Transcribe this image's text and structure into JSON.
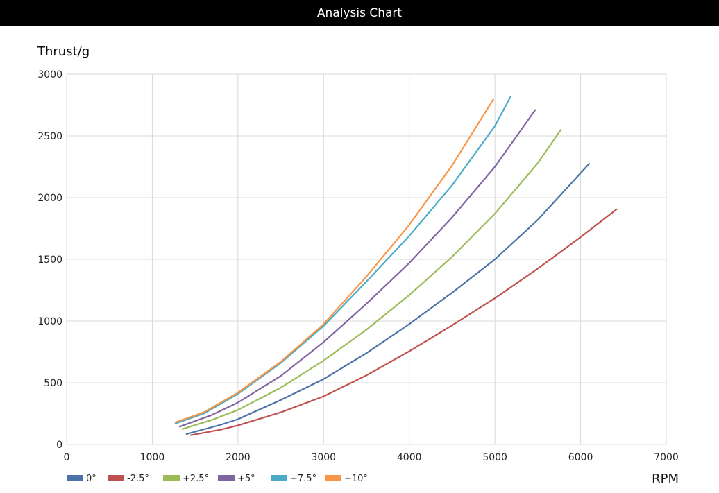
{
  "window": {
    "title": "Analysis Chart"
  },
  "chart_data": {
    "type": "line",
    "xlabel": "RPM",
    "ylabel": "Thrust/g",
    "xlim": [
      0,
      7000
    ],
    "ylim": [
      0,
      3000
    ],
    "xticks": [
      0,
      1000,
      2000,
      3000,
      4000,
      5000,
      6000,
      7000
    ],
    "yticks": [
      0,
      500,
      1000,
      1500,
      2000,
      2500,
      3000
    ],
    "grid": true,
    "legend_position": "bottom-left",
    "series": [
      {
        "name": "0°",
        "color": "#4a74a8",
        "x": [
          1400,
          1800,
          2000,
          2500,
          3000,
          3500,
          4000,
          4500,
          5000,
          5500,
          6100
        ],
        "y": [
          85,
          160,
          205,
          360,
          530,
          740,
          975,
          1230,
          1500,
          1820,
          2275
        ]
      },
      {
        "name": "-2.5°",
        "color": "#c0504d",
        "x": [
          1450,
          1800,
          2000,
          2500,
          3000,
          3500,
          4000,
          4500,
          5000,
          5500,
          6000,
          6420
        ],
        "y": [
          75,
          120,
          155,
          260,
          390,
          560,
          755,
          965,
          1185,
          1425,
          1680,
          1905
        ]
      },
      {
        "name": "+2.5°",
        "color": "#9bbb59",
        "x": [
          1350,
          1700,
          2000,
          2500,
          3000,
          3500,
          4000,
          4500,
          5000,
          5500,
          5770
        ],
        "y": [
          125,
          200,
          280,
          460,
          680,
          930,
          1210,
          1520,
          1870,
          2280,
          2550
        ]
      },
      {
        "name": "+5°",
        "color": "#8064a2",
        "x": [
          1320,
          1700,
          2000,
          2500,
          3000,
          3500,
          4000,
          4500,
          5000,
          5470
        ],
        "y": [
          145,
          240,
          340,
          555,
          830,
          1140,
          1470,
          1840,
          2250,
          2710
        ]
      },
      {
        "name": "+7.5°",
        "color": "#4bacc6",
        "x": [
          1270,
          1600,
          2000,
          2500,
          3000,
          3500,
          4000,
          4500,
          5000,
          5180
        ],
        "y": [
          170,
          250,
          410,
          660,
          960,
          1320,
          1690,
          2100,
          2580,
          2815
        ]
      },
      {
        "name": "+10°",
        "color": "#f79646",
        "x": [
          1270,
          1600,
          2000,
          2500,
          3000,
          3500,
          4000,
          4500,
          4980
        ],
        "y": [
          180,
          260,
          420,
          670,
          975,
          1360,
          1780,
          2260,
          2795
        ]
      }
    ]
  }
}
